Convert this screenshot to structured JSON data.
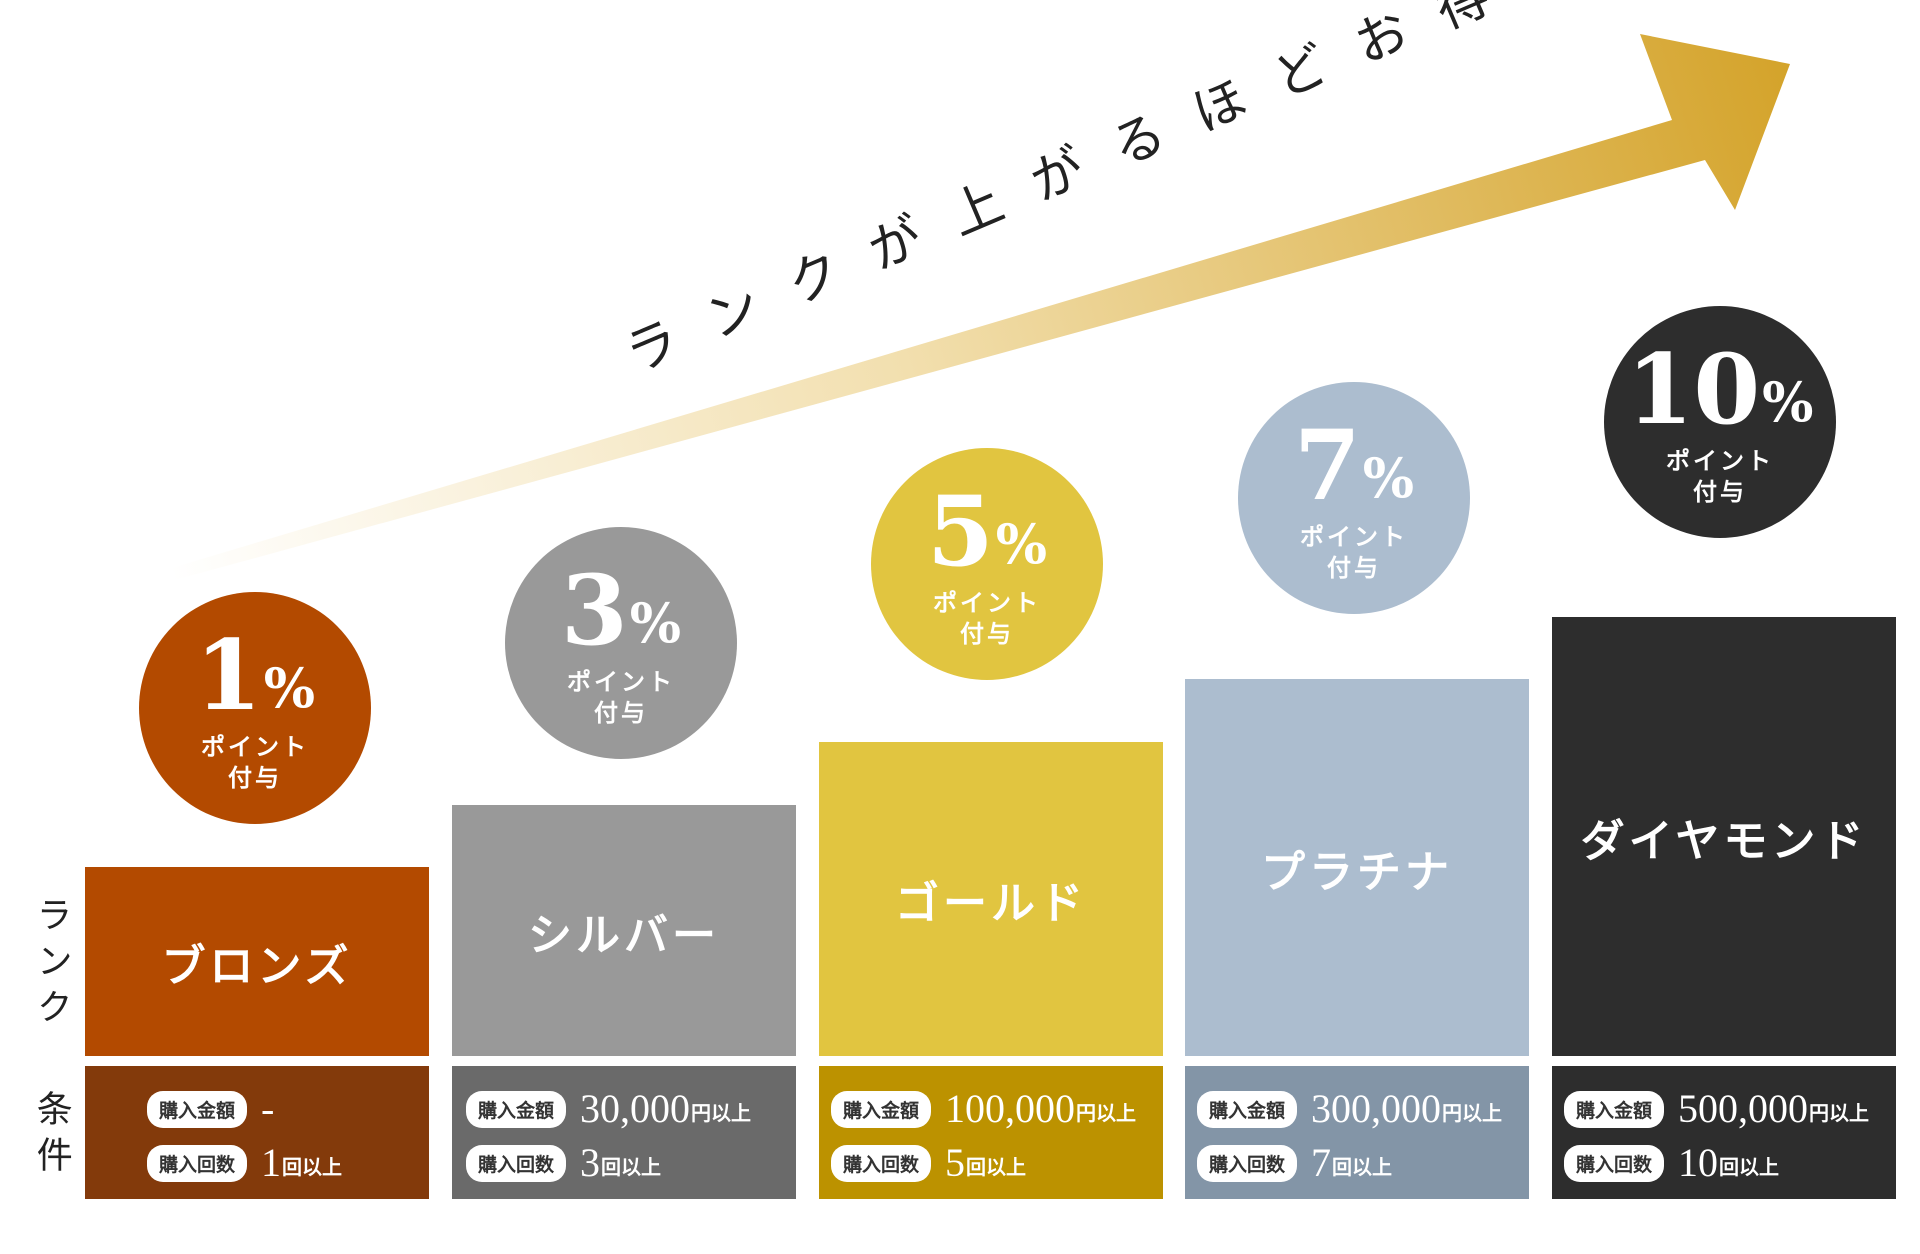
{
  "tagline": "ランクが上がるほどお得",
  "side_labels": {
    "rank": "ランク",
    "condition": "条件"
  },
  "condition_labels": {
    "amount": "購入金額",
    "count": "購入回数"
  },
  "tiers": [
    {
      "name": "ブロンズ",
      "percent": "1",
      "percent_sign": "%",
      "point_line1": "ポイント",
      "point_line2": "付与",
      "amount_value": "-",
      "amount_unit": "",
      "count_value": "1",
      "count_unit": "回以上",
      "color": "#B34A00",
      "cond_color": "#833A0B"
    },
    {
      "name": "シルバー",
      "percent": "3",
      "percent_sign": "%",
      "point_line1": "ポイント",
      "point_line2": "付与",
      "amount_value": "30,000",
      "amount_unit": "円以上",
      "count_value": "3",
      "count_unit": "回以上",
      "color": "#999999",
      "cond_color": "#6A6A6A"
    },
    {
      "name": "ゴールド",
      "percent": "5",
      "percent_sign": "%",
      "point_line1": "ポイント",
      "point_line2": "付与",
      "amount_value": "100,000",
      "amount_unit": "円以上",
      "count_value": "5",
      "count_unit": "回以上",
      "color": "#E1C540",
      "cond_color": "#BC9200"
    },
    {
      "name": "プラチナ",
      "percent": "7",
      "percent_sign": "%",
      "point_line1": "ポイント",
      "point_line2": "付与",
      "amount_value": "300,000",
      "amount_unit": "円以上",
      "count_value": "7",
      "count_unit": "回以上",
      "color": "#ACBDCF",
      "cond_color": "#8395A7"
    },
    {
      "name": "ダイヤモンド",
      "percent": "10",
      "percent_sign": "%",
      "point_line1": "ポイント",
      "point_line2": "付与",
      "amount_value": "500,000",
      "amount_unit": "円以上",
      "count_value": "10",
      "count_unit": "回以上",
      "color": "#2D2D2D",
      "cond_color": "#2D2D2D"
    }
  ],
  "arrow_colors": {
    "start": "#FFFFFF",
    "end": "#D4A32A"
  }
}
